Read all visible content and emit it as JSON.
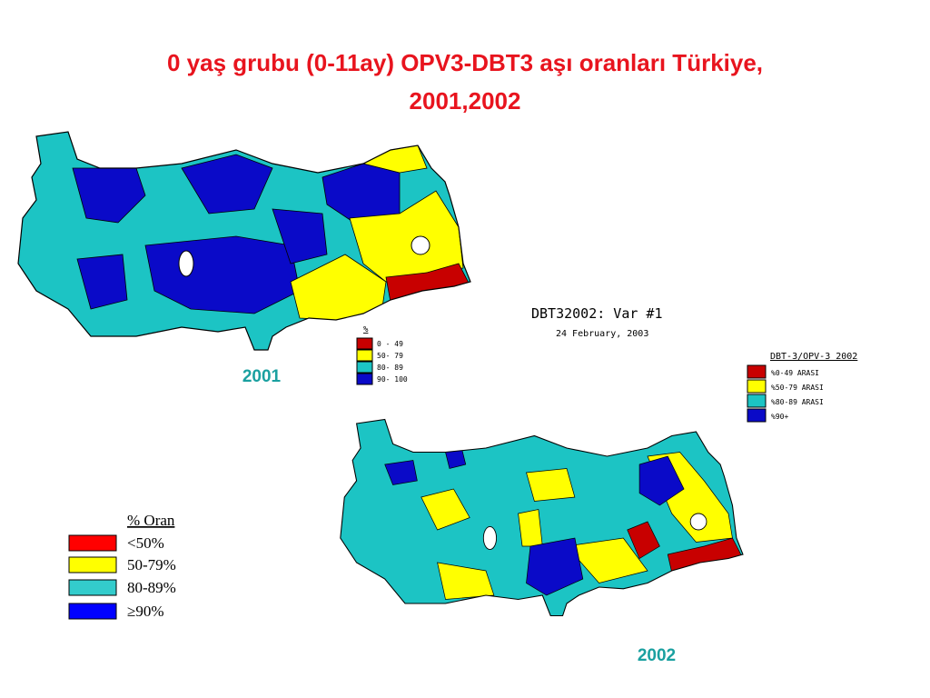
{
  "title": "0 yaş grubu (0-11ay) OPV3-DBT3 aşı oranları Türkiye, 2001,2002",
  "maps": [
    {
      "label": "2001"
    },
    {
      "label": "2002"
    }
  ],
  "legend_2001": {
    "header": "%",
    "items": [
      "0 - 49",
      "50- 79",
      "80- 89",
      "90- 100"
    ]
  },
  "map_header": {
    "title": "DBT32002: Var #1",
    "date": "24 February, 2003"
  },
  "legend_2002": {
    "header": "DBT-3/OPV-3 2002",
    "items": [
      "%0-49 ARASI",
      "%50-79 ARASI",
      "%80-89 ARASI",
      "%90+"
    ]
  },
  "legend_oran": {
    "header": "% Oran",
    "items": [
      "<50%",
      "50-79%",
      "80-89%",
      "≥90%"
    ]
  }
}
